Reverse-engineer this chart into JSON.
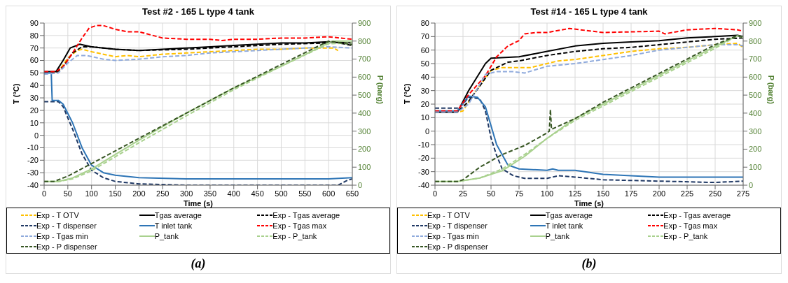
{
  "chart_data": [
    {
      "type": "line",
      "title": "Test #2 - 165 L type 4 tank",
      "xlabel": "Time (s)",
      "ylabel": "T (°C)",
      "y2label": "P (barg)",
      "annotations": [
        "(a)"
      ],
      "xlim": [
        0,
        650
      ],
      "xticks": [
        0,
        50,
        100,
        150,
        200,
        250,
        300,
        350,
        400,
        450,
        500,
        550,
        600,
        650
      ],
      "ylim": [
        -40,
        90
      ],
      "yticks": [
        -40,
        -30,
        -20,
        -10,
        0,
        10,
        20,
        30,
        40,
        50,
        60,
        70,
        80,
        90
      ],
      "y2lim": [
        0,
        900
      ],
      "y2ticks": [
        0,
        100,
        200,
        300,
        400,
        500,
        600,
        700,
        800,
        900
      ],
      "grid": true,
      "legend": "bottom",
      "marker": "none",
      "series": [
        {
          "name": "Exp - T OTV",
          "color": "#ffc000",
          "line_style": "dashed",
          "x": [
            0,
            20,
            30,
            50,
            70,
            80,
            100,
            150,
            175,
            200,
            250,
            300,
            350,
            400,
            450,
            500,
            550,
            600,
            610,
            620
          ],
          "values": [
            50,
            50,
            51,
            62,
            68,
            69,
            67,
            63,
            64,
            63,
            65,
            66,
            67,
            68,
            69,
            69,
            70,
            70,
            70,
            68
          ]
        },
        {
          "name": "Tgas average",
          "color": "#000000",
          "line_style": "solid",
          "x": [
            0,
            25,
            40,
            55,
            75,
            100,
            150,
            200,
            250,
            300,
            350,
            400,
            450,
            500,
            550,
            600,
            650
          ],
          "values": [
            51,
            51,
            60,
            70,
            73,
            71,
            69,
            68,
            69,
            70,
            71,
            72,
            73,
            74,
            74,
            75,
            74
          ]
        },
        {
          "name": "Exp - Tgas average",
          "color": "#000000",
          "line_style": "dashed",
          "x": [
            0,
            25,
            40,
            60,
            80,
            100,
            150,
            200,
            300,
            400,
            500,
            600,
            610,
            650
          ],
          "values": [
            50,
            50,
            55,
            66,
            71,
            71,
            69,
            68,
            69,
            71,
            73,
            74,
            75,
            72
          ]
        },
        {
          "name": "Exp - T dispenser",
          "color": "#1f3864",
          "line_style": "dashed",
          "x": [
            0,
            20,
            30,
            40,
            60,
            80,
            100,
            125,
            150,
            200,
            300,
            400,
            500,
            620,
            640,
            650
          ],
          "values": [
            27,
            27,
            27,
            23,
            5,
            -15,
            -28,
            -34,
            -37,
            -39,
            -40,
            -40,
            -40,
            -40,
            -36,
            -35
          ]
        },
        {
          "name": "T inlet tank",
          "color": "#2e75b6",
          "line_style": "solid",
          "x": [
            0,
            15,
            17,
            30,
            40,
            60,
            80,
            100,
            125,
            150,
            200,
            300,
            400,
            500,
            600,
            650
          ],
          "values": [
            50,
            50,
            28,
            28,
            25,
            10,
            -10,
            -24,
            -30,
            -32,
            -34,
            -35,
            -35,
            -35,
            -35,
            -34
          ]
        },
        {
          "name": "Exp - Tgas max",
          "color": "#ff0000",
          "line_style": "dashed",
          "x": [
            0,
            25,
            40,
            60,
            80,
            95,
            110,
            125,
            150,
            175,
            200,
            250,
            300,
            350,
            375,
            400,
            450,
            500,
            550,
            600,
            650
          ],
          "values": [
            51,
            51,
            55,
            66,
            78,
            86,
            88,
            88,
            85,
            83,
            83,
            78,
            77,
            77,
            76,
            77,
            77,
            78,
            78,
            79,
            77
          ]
        },
        {
          "name": "Exp - Tgas min",
          "color": "#8faadc",
          "line_style": "dashed",
          "x": [
            0,
            30,
            50,
            70,
            90,
            125,
            150,
            200,
            250,
            300,
            350,
            400,
            450,
            500,
            550,
            600,
            650
          ],
          "values": [
            49,
            50,
            58,
            64,
            64,
            61,
            60,
            61,
            63,
            64,
            66,
            67,
            68,
            69,
            70,
            71,
            70
          ]
        },
        {
          "name": "P_tank",
          "color": "#a9d18e",
          "line_style": "solid",
          "axis": "y2",
          "x": [
            0,
            30,
            60,
            100,
            150,
            200,
            300,
            400,
            500,
            600,
            610,
            650
          ],
          "values": [
            20,
            20,
            40,
            90,
            170,
            250,
            400,
            540,
            660,
            790,
            800,
            800
          ]
        },
        {
          "name": "Exp - P_tank",
          "color": "#a9d18e",
          "line_style": "dashed",
          "axis": "y2",
          "x": [
            0,
            30,
            60,
            100,
            200,
            300,
            400,
            500,
            600,
            650
          ],
          "values": [
            20,
            20,
            35,
            80,
            235,
            385,
            530,
            660,
            785,
            790
          ]
        },
        {
          "name": "Exp - P dispenser",
          "color": "#375623",
          "line_style": "dashed",
          "axis": "y2",
          "x": [
            0,
            20,
            50,
            100,
            200,
            300,
            400,
            500,
            600,
            650
          ],
          "values": [
            20,
            20,
            50,
            120,
            260,
            400,
            540,
            670,
            800,
            780
          ]
        }
      ]
    },
    {
      "type": "line",
      "title": "Test #14 - 165 L type 4 tank",
      "xlabel": "Time (s)",
      "ylabel": "T (°C)",
      "y2label": "P (barg)",
      "annotations": [
        "(b)"
      ],
      "xlim": [
        0,
        275
      ],
      "xticks": [
        0,
        25,
        50,
        75,
        100,
        125,
        150,
        175,
        200,
        225,
        250,
        275
      ],
      "ylim": [
        -40,
        80
      ],
      "yticks": [
        -40,
        -30,
        -20,
        -10,
        0,
        10,
        20,
        30,
        40,
        50,
        60,
        70,
        80
      ],
      "y2lim": [
        0,
        900
      ],
      "y2ticks": [
        0,
        100,
        200,
        300,
        400,
        500,
        600,
        700,
        800,
        900
      ],
      "grid": true,
      "legend": "bottom",
      "marker": "none",
      "series": [
        {
          "name": "Exp - T OTV",
          "color": "#ffc000",
          "line_style": "dashed",
          "x": [
            0,
            20,
            25,
            35,
            50,
            60,
            75,
            85,
            100,
            110,
            125,
            150,
            175,
            200,
            225,
            250,
            270,
            275
          ],
          "values": [
            14,
            14,
            15,
            28,
            45,
            47,
            47,
            47,
            50,
            52,
            53,
            56,
            59,
            61,
            62,
            64,
            65,
            62
          ]
        },
        {
          "name": "Tgas average",
          "color": "#000000",
          "line_style": "solid",
          "x": [
            0,
            20,
            30,
            45,
            50,
            75,
            100,
            125,
            150,
            175,
            200,
            225,
            250,
            270,
            275
          ],
          "values": [
            14,
            14,
            30,
            50,
            54,
            55,
            59,
            63,
            65,
            66,
            67,
            69,
            70,
            71,
            70
          ]
        },
        {
          "name": "Exp - Tgas average",
          "color": "#000000",
          "line_style": "dashed",
          "x": [
            0,
            20,
            30,
            50,
            65,
            75,
            100,
            125,
            150,
            175,
            200,
            225,
            250,
            275
          ],
          "values": [
            14,
            14,
            22,
            45,
            51,
            52,
            56,
            59,
            61,
            62,
            64,
            66,
            68,
            69
          ]
        },
        {
          "name": "Exp - T dispenser",
          "color": "#1f3864",
          "line_style": "dashed",
          "x": [
            0,
            20,
            25,
            30,
            40,
            45,
            50,
            55,
            60,
            70,
            80,
            100,
            110,
            125,
            150,
            200,
            250,
            275
          ],
          "values": [
            17,
            17,
            20,
            25,
            24,
            15,
            -5,
            -18,
            -28,
            -33,
            -35,
            -35,
            -33,
            -34,
            -36,
            -37,
            -38,
            -37
          ]
        },
        {
          "name": "T inlet tank",
          "color": "#2e75b6",
          "line_style": "solid",
          "x": [
            0,
            20,
            30,
            38,
            45,
            55,
            65,
            75,
            100,
            105,
            110,
            125,
            150,
            200,
            250,
            275
          ],
          "values": [
            15,
            15,
            26,
            25,
            18,
            -10,
            -25,
            -28,
            -29,
            -28,
            -29,
            -29,
            -32,
            -34,
            -34,
            -34
          ]
        },
        {
          "name": "Exp - Tgas max",
          "color": "#ff0000",
          "line_style": "dashed",
          "x": [
            0,
            20,
            30,
            45,
            55,
            65,
            75,
            80,
            90,
            100,
            120,
            150,
            200,
            205,
            225,
            250,
            270,
            275
          ],
          "values": [
            15,
            15,
            27,
            41,
            55,
            63,
            67,
            72,
            73,
            73,
            76,
            73,
            74,
            72,
            75,
            76,
            75,
            74
          ]
        },
        {
          "name": "Exp - Tgas min",
          "color": "#8faadc",
          "line_style": "dashed",
          "x": [
            0,
            20,
            30,
            45,
            55,
            70,
            80,
            100,
            125,
            150,
            175,
            200,
            225,
            250,
            270,
            275
          ],
          "values": [
            14,
            14,
            20,
            42,
            44,
            44,
            43,
            48,
            50,
            53,
            56,
            60,
            62,
            64,
            64,
            63
          ]
        },
        {
          "name": "P_tank",
          "color": "#a9d18e",
          "line_style": "solid",
          "axis": "y2",
          "x": [
            0,
            20,
            40,
            60,
            80,
            100,
            125,
            150,
            175,
            200,
            225,
            250,
            270,
            275
          ],
          "values": [
            20,
            20,
            40,
            80,
            160,
            260,
            370,
            450,
            530,
            610,
            690,
            770,
            830,
            820
          ]
        },
        {
          "name": "Exp - P_tank",
          "color": "#a9d18e",
          "line_style": "dashed",
          "axis": "y2",
          "x": [
            0,
            20,
            40,
            60,
            80,
            100,
            125,
            150,
            175,
            200,
            225,
            250,
            270,
            275
          ],
          "values": [
            20,
            20,
            40,
            90,
            170,
            260,
            360,
            440,
            520,
            600,
            680,
            760,
            830,
            820
          ]
        },
        {
          "name": "Exp - P dispenser",
          "color": "#375623",
          "line_style": "dashed",
          "axis": "y2",
          "x": [
            0,
            20,
            25,
            40,
            60,
            80,
            100,
            102,
            103,
            104,
            125,
            150,
            175,
            200,
            225,
            250,
            270,
            275
          ],
          "values": [
            20,
            20,
            30,
            100,
            170,
            220,
            290,
            300,
            420,
            310,
            370,
            460,
            540,
            620,
            700,
            780,
            830,
            820
          ]
        }
      ]
    }
  ]
}
